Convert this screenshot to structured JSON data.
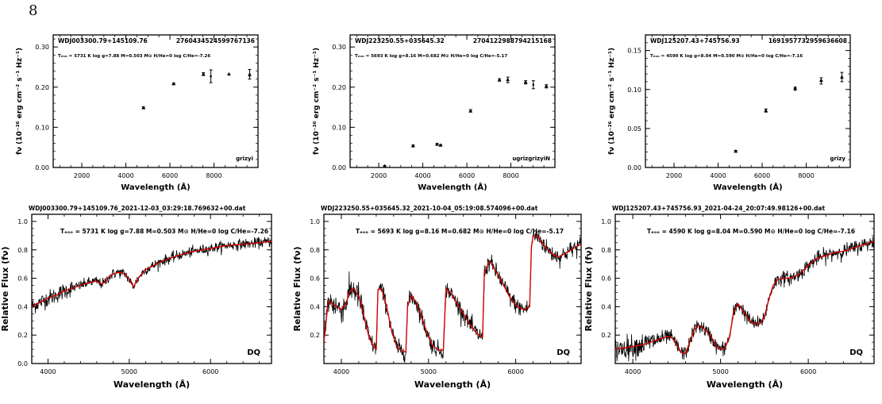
{
  "page": {
    "number": "8"
  },
  "chart_data": [
    {
      "type": "scatter",
      "id": "phot1",
      "object": "WDJ003300.79+145109.76",
      "source_id": "2760434524599767136",
      "params": "Tₑₒₒ = 5731 K log g=7.88 M=0.503 M⊙ H/He=0 log C/He=-7.26",
      "bands": "grizyi",
      "xlabel": "Wavelength (Å)",
      "ylabel": "fν (10⁻²⁶ erg cm⁻² s⁻¹ Hz⁻¹)",
      "xlim": [
        700,
        10000
      ],
      "ylim": [
        0,
        0.33
      ],
      "xticks": [
        2000,
        4000,
        6000,
        8000
      ],
      "yticks": [
        0.0,
        0.1,
        0.2,
        0.3
      ],
      "ytick_labels": [
        "0.00",
        "0.10",
        "0.20",
        "0.30"
      ],
      "model_points": [
        {
          "x": 4800,
          "y": 0.149
        },
        {
          "x": 6170,
          "y": 0.209
        },
        {
          "x": 7520,
          "y": 0.232
        },
        {
          "x": 8680,
          "y": 0.233
        },
        {
          "x": 9620,
          "y": 0.231
        }
      ],
      "obs_points": [
        {
          "x": 4800,
          "y": 0.149,
          "err": 0.002
        },
        {
          "x": 6170,
          "y": 0.208,
          "err": 0.002
        },
        {
          "x": 7520,
          "y": 0.233,
          "err": 0.003
        },
        {
          "x": 7860,
          "y": 0.227,
          "err": 0.016
        },
        {
          "x": 9620,
          "y": 0.232,
          "err": 0.012
        }
      ]
    },
    {
      "type": "scatter",
      "id": "phot2",
      "object": "WDJ223250.55+035645.32",
      "source_id": "2704122988794215168",
      "params": "Tₑₒₒ = 5693 K log g=8.16 M=0.682 M⊙ H/He=0 log C/He=-5.17",
      "bands": "ugrizgrizyiN",
      "xlabel": "Wavelength (Å)",
      "ylabel": "fν (10⁻²⁶ erg cm⁻² s⁻¹ Hz⁻¹)",
      "xlim": [
        700,
        10000
      ],
      "ylim": [
        0,
        0.33
      ],
      "xticks": [
        2000,
        4000,
        6000,
        8000
      ],
      "yticks": [
        0.0,
        0.1,
        0.2,
        0.3
      ],
      "ytick_labels": [
        "0.00",
        "0.10",
        "0.20",
        "0.30"
      ],
      "model_points": [
        {
          "x": 2270,
          "y": 0.004
        },
        {
          "x": 3560,
          "y": 0.054
        },
        {
          "x": 4650,
          "y": 0.058
        },
        {
          "x": 4810,
          "y": 0.056
        },
        {
          "x": 6170,
          "y": 0.141
        },
        {
          "x": 7480,
          "y": 0.218
        },
        {
          "x": 7860,
          "y": 0.219
        },
        {
          "x": 8670,
          "y": 0.213
        },
        {
          "x": 9610,
          "y": 0.203
        }
      ],
      "obs_points": [
        {
          "x": 2270,
          "y": 0.003,
          "err": 0.002
        },
        {
          "x": 3560,
          "y": 0.054,
          "err": 0.002
        },
        {
          "x": 4650,
          "y": 0.058,
          "err": 0.002
        },
        {
          "x": 4810,
          "y": 0.055,
          "err": 0.002
        },
        {
          "x": 6170,
          "y": 0.141,
          "err": 0.003
        },
        {
          "x": 7480,
          "y": 0.218,
          "err": 0.003
        },
        {
          "x": 7860,
          "y": 0.218,
          "err": 0.007
        },
        {
          "x": 8670,
          "y": 0.212,
          "err": 0.004
        },
        {
          "x": 9020,
          "y": 0.206,
          "err": 0.01
        },
        {
          "x": 9610,
          "y": 0.202,
          "err": 0.004
        }
      ]
    },
    {
      "type": "scatter",
      "id": "phot3",
      "object": "WDJ125207.43+745756.93",
      "source_id": "1691957732959636608",
      "params": "Tₑₒₒ = 4590 K log g=8.04 M=0.590 M⊙ H/He=0 log C/He=-7.16",
      "bands": "grizy",
      "xlabel": "Wavelength (Å)",
      "ylabel": "fν (10⁻²⁶ erg cm⁻² s⁻¹ Hz⁻¹)",
      "xlim": [
        700,
        10000
      ],
      "ylim": [
        0,
        0.17
      ],
      "xticks": [
        2000,
        4000,
        6000,
        8000
      ],
      "yticks": [
        0.0,
        0.05,
        0.1,
        0.15
      ],
      "ytick_labels": [
        "0.00",
        "0.05",
        "0.10",
        "0.15"
      ],
      "model_points": [
        {
          "x": 4800,
          "y": 0.021
        },
        {
          "x": 6170,
          "y": 0.073
        },
        {
          "x": 7500,
          "y": 0.102
        },
        {
          "x": 8680,
          "y": 0.112
        },
        {
          "x": 9620,
          "y": 0.116
        }
      ],
      "obs_points": [
        {
          "x": 4800,
          "y": 0.021,
          "err": 0.001
        },
        {
          "x": 6170,
          "y": 0.073,
          "err": 0.002
        },
        {
          "x": 7500,
          "y": 0.101,
          "err": 0.002
        },
        {
          "x": 8680,
          "y": 0.111,
          "err": 0.004
        },
        {
          "x": 9620,
          "y": 0.116,
          "err": 0.006
        }
      ]
    },
    {
      "type": "line",
      "id": "spec1",
      "file": "WDJ003300.79+145109.76_2021-12-03_03:29:18.769632+00.dat",
      "params": "Tₑₒₒ = 5731 K log g=7.88 M=0.503 M⊙ H/He=0 log C/He=-7.26",
      "label": "DQ",
      "xlabel": "Wavelength (Å)",
      "ylabel": "Relative Flux (fν)",
      "xlim": [
        3800,
        6750
      ],
      "ylim": [
        0,
        1.05
      ],
      "xticks": [
        4000,
        5000,
        6000
      ],
      "yticks": [
        0.0,
        0.2,
        0.4,
        0.6,
        0.8,
        1.0
      ],
      "ytick_labels": [
        "0.0",
        "0.2",
        "0.4",
        "0.6",
        "0.8",
        "1.0"
      ],
      "noise": 0.018,
      "series": [
        {
          "role": "model",
          "color": "#d40000",
          "x": [
            3800,
            3900,
            4000,
            4100,
            4200,
            4300,
            4400,
            4500,
            4600,
            4650,
            4700,
            4750,
            4800,
            4850,
            4900,
            4950,
            5000,
            5050,
            5100,
            5150,
            5200,
            5300,
            5400,
            5500,
            5600,
            5800,
            6000,
            6200,
            6400,
            6600,
            6750
          ],
          "y": [
            0.4,
            0.43,
            0.46,
            0.48,
            0.51,
            0.53,
            0.55,
            0.57,
            0.58,
            0.56,
            0.57,
            0.61,
            0.63,
            0.64,
            0.64,
            0.63,
            0.59,
            0.54,
            0.59,
            0.63,
            0.66,
            0.69,
            0.72,
            0.74,
            0.76,
            0.79,
            0.81,
            0.83,
            0.84,
            0.85,
            0.86
          ]
        },
        {
          "role": "observed",
          "color": "#000000"
        }
      ]
    },
    {
      "type": "line",
      "id": "spec2",
      "file": "WDJ223250.55+035645.32_2021-10-04_05:19:08.574096+00.dat",
      "params": "Tₑₒₒ = 5693 K log g=8.16 M=0.682 M⊙ H/He=0 log C/He=-5.17",
      "label": "DQ",
      "xlabel": "Wavelength (Å)",
      "ylabel": "Relative Flux (fν)",
      "xlim": [
        3800,
        6750
      ],
      "ylim": [
        0,
        1.05
      ],
      "xticks": [
        4000,
        5000,
        6000
      ],
      "yticks": [
        0.2,
        0.4,
        0.6,
        0.8,
        1.0
      ],
      "ytick_labels": [
        "0.2",
        "0.4",
        "0.6",
        "0.8",
        "1.0"
      ],
      "noise": 0.03,
      "series": [
        {
          "role": "model",
          "color": "#d40000",
          "x": [
            3800,
            3850,
            3900,
            3950,
            4000,
            4050,
            4100,
            4140,
            4200,
            4260,
            4320,
            4370,
            4400,
            4420,
            4460,
            4520,
            4580,
            4640,
            4700,
            4740,
            4760,
            4800,
            4860,
            4920,
            4980,
            5040,
            5100,
            5150,
            5170,
            5200,
            5260,
            5330,
            5400,
            5470,
            5540,
            5600,
            5620,
            5640,
            5700,
            5780,
            5860,
            5940,
            6020,
            6100,
            6160,
            6180,
            6200,
            6260,
            6340,
            6420,
            6500,
            6580,
            6660,
            6750
          ],
          "y": [
            0.15,
            0.44,
            0.42,
            0.4,
            0.38,
            0.42,
            0.51,
            0.53,
            0.47,
            0.33,
            0.18,
            0.12,
            0.1,
            0.52,
            0.53,
            0.4,
            0.22,
            0.11,
            0.09,
            0.08,
            0.4,
            0.48,
            0.43,
            0.33,
            0.22,
            0.13,
            0.1,
            0.09,
            0.1,
            0.53,
            0.49,
            0.42,
            0.35,
            0.28,
            0.22,
            0.19,
            0.19,
            0.64,
            0.72,
            0.64,
            0.55,
            0.46,
            0.4,
            0.38,
            0.4,
            0.82,
            0.9,
            0.89,
            0.82,
            0.77,
            0.75,
            0.78,
            0.81,
            0.84
          ]
        },
        {
          "role": "observed",
          "color": "#000000"
        }
      ]
    },
    {
      "type": "line",
      "id": "spec3",
      "file": "WDJ125207.43+745756.93_2021-04-24_20:07:49.98126+00.dat",
      "params": "Tₑₒₒ = 4590 K log g=8.04 M=0.590 M⊙ H/He=0 log C/He=-7.16",
      "label": "DQ",
      "xlabel": "Wavelength (Å)",
      "ylabel": "Relative Flux (fν)",
      "xlim": [
        3800,
        6750
      ],
      "ylim": [
        0,
        1.05
      ],
      "xticks": [
        4000,
        5000,
        6000
      ],
      "yticks": [
        0.2,
        0.4,
        0.6,
        0.8,
        1.0
      ],
      "ytick_labels": [
        "0.2",
        "0.4",
        "0.6",
        "0.8",
        "1.0"
      ],
      "noise": 0.025,
      "series": [
        {
          "role": "model",
          "color": "#d40000",
          "x": [
            3800,
            3900,
            4000,
            4100,
            4200,
            4300,
            4400,
            4450,
            4500,
            4550,
            4600,
            4650,
            4700,
            4750,
            4800,
            4850,
            4900,
            4950,
            5000,
            5050,
            5100,
            5150,
            5200,
            5250,
            5300,
            5350,
            5400,
            5450,
            5500,
            5550,
            5600,
            5650,
            5700,
            5800,
            5900,
            6000,
            6100,
            6200,
            6300,
            6400,
            6500,
            6600,
            6750
          ],
          "y": [
            0.1,
            0.11,
            0.12,
            0.13,
            0.15,
            0.17,
            0.19,
            0.18,
            0.13,
            0.08,
            0.07,
            0.15,
            0.24,
            0.27,
            0.25,
            0.22,
            0.18,
            0.12,
            0.1,
            0.11,
            0.18,
            0.36,
            0.42,
            0.38,
            0.33,
            0.29,
            0.28,
            0.28,
            0.33,
            0.45,
            0.55,
            0.59,
            0.6,
            0.6,
            0.63,
            0.69,
            0.74,
            0.76,
            0.78,
            0.79,
            0.81,
            0.83,
            0.86
          ]
        },
        {
          "role": "observed",
          "color": "#000000"
        }
      ]
    }
  ]
}
